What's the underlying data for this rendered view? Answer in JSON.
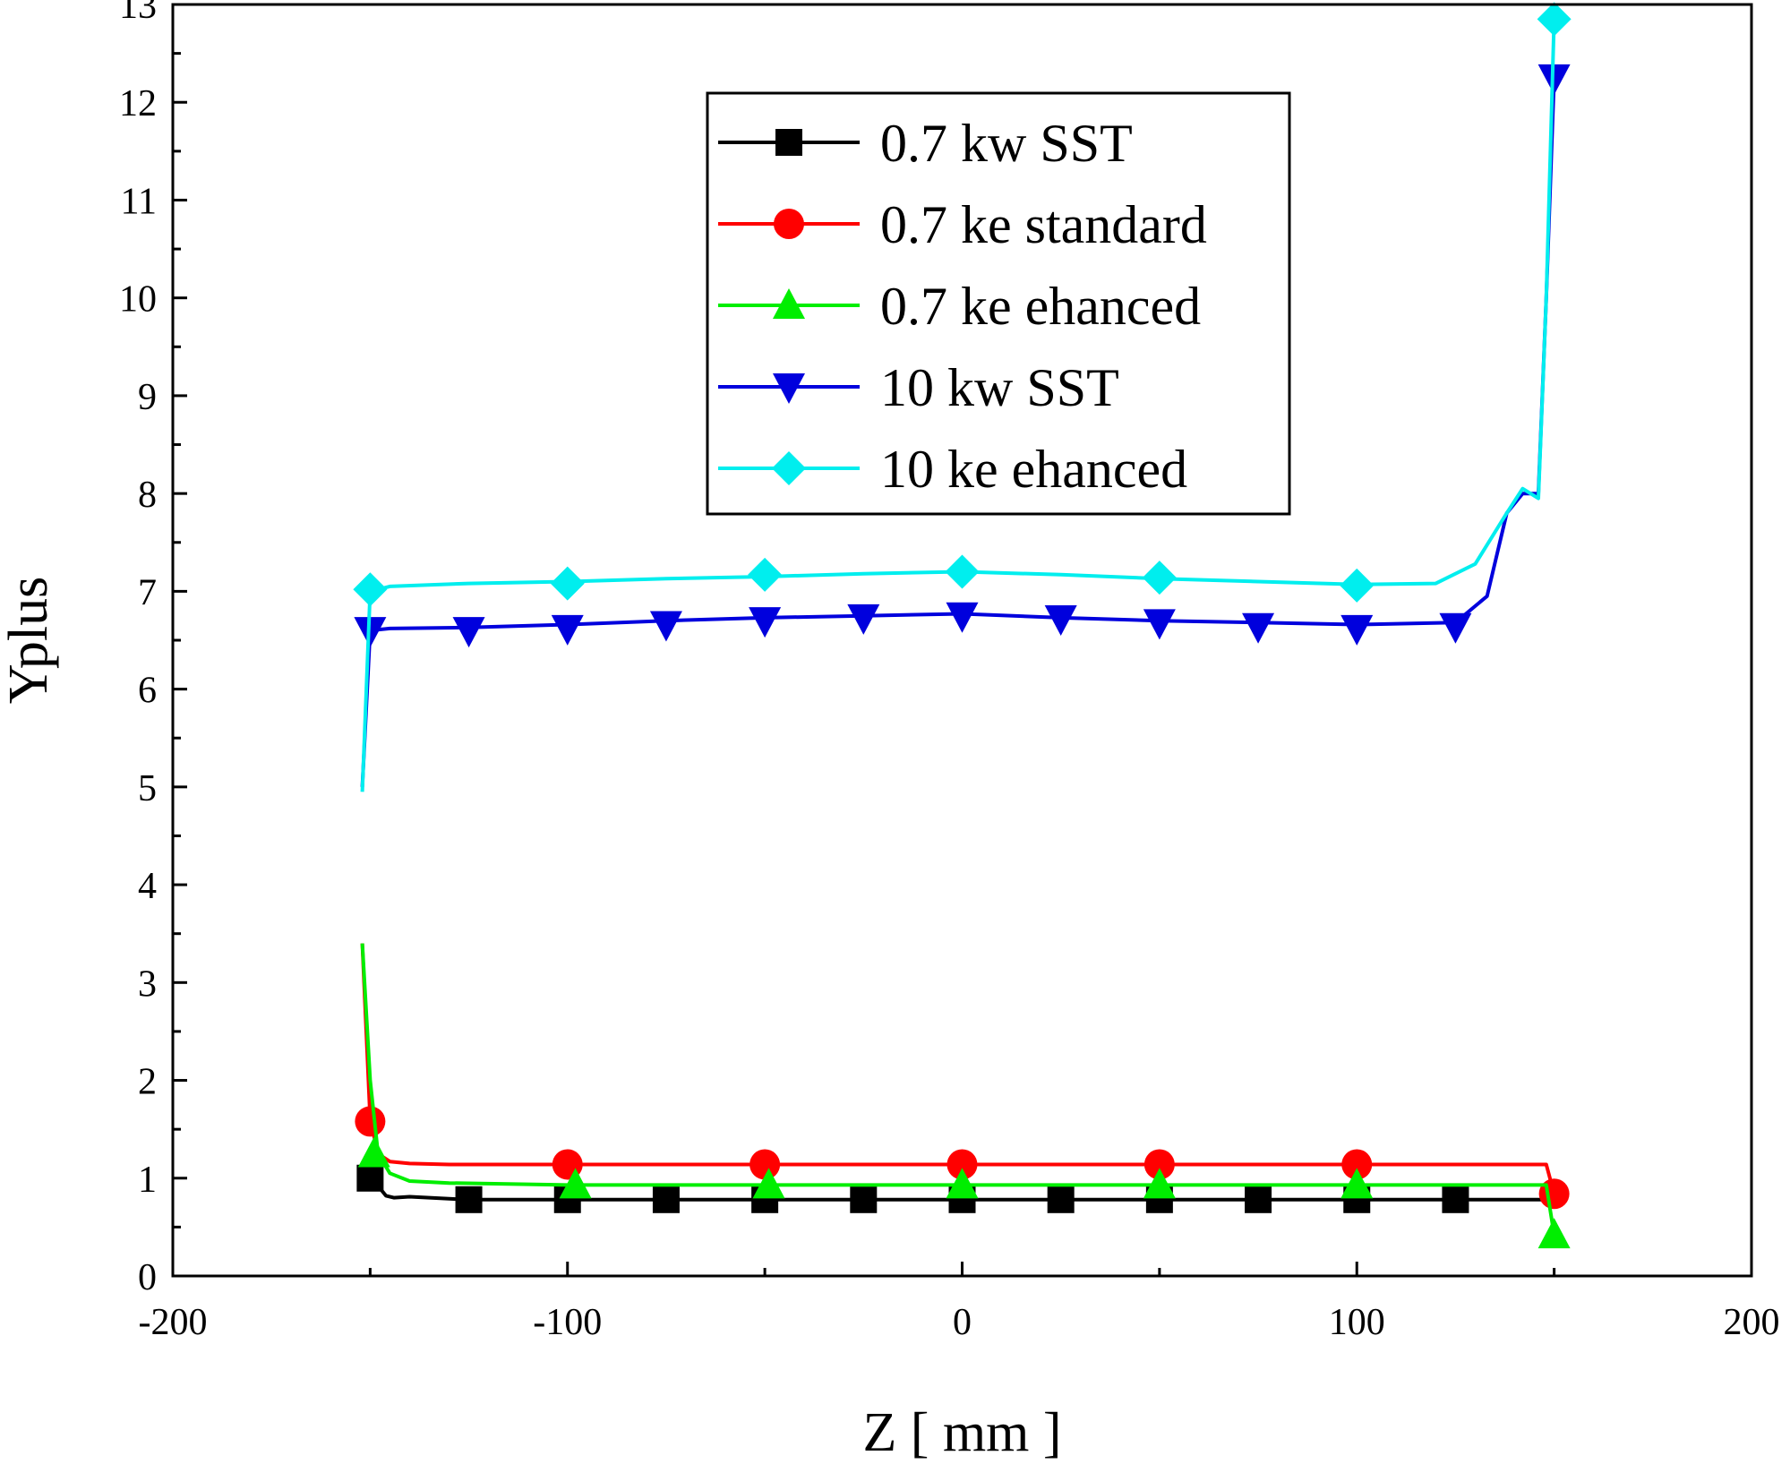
{
  "chart_data": {
    "type": "line",
    "xlabel": "Z [ mm ]",
    "ylabel": "Yplus",
    "xlim": [
      -200,
      200
    ],
    "ylim": [
      0,
      13
    ],
    "xticks": [
      -200,
      -100,
      0,
      100,
      200
    ],
    "yticks": [
      0,
      1,
      2,
      3,
      4,
      5,
      6,
      7,
      8,
      9,
      10,
      11,
      12,
      13
    ],
    "grid": false,
    "legend_position": "top-center",
    "series": [
      {
        "name": "0.7 kw SST",
        "color": "#000000",
        "marker": "square",
        "x": [
          -150,
          -148,
          -146,
          -144,
          -140,
          -135,
          -130,
          -125,
          -100,
          -75,
          -50,
          -25,
          0,
          25,
          50,
          75,
          100,
          125,
          148
        ],
        "y": [
          1.0,
          0.92,
          0.82,
          0.8,
          0.81,
          0.8,
          0.79,
          0.78,
          0.78,
          0.78,
          0.78,
          0.78,
          0.78,
          0.78,
          0.78,
          0.78,
          0.78,
          0.78,
          0.78
        ],
        "marker_x": [
          -150,
          -125,
          -100,
          -75,
          -50,
          -25,
          0,
          25,
          50,
          75,
          100,
          125
        ],
        "marker_y": [
          1.0,
          0.78,
          0.78,
          0.78,
          0.78,
          0.78,
          0.78,
          0.78,
          0.78,
          0.78,
          0.78,
          0.78
        ]
      },
      {
        "name": "0.7 ke standard",
        "color": "#ff0000",
        "marker": "circle",
        "x": [
          -152,
          -150,
          -148,
          -145,
          -140,
          -130,
          -100,
          -50,
          0,
          50,
          100,
          148,
          150
        ],
        "y": [
          3.4,
          1.6,
          1.25,
          1.17,
          1.15,
          1.14,
          1.14,
          1.14,
          1.14,
          1.14,
          1.14,
          1.14,
          0.84
        ],
        "marker_x": [
          -150,
          -100,
          -50,
          0,
          50,
          100,
          150
        ],
        "marker_y": [
          1.58,
          1.14,
          1.14,
          1.14,
          1.14,
          1.14,
          0.84
        ]
      },
      {
        "name": "0.7 ke ehanced",
        "color": "#00ee00",
        "marker": "triangle-up",
        "x": [
          -152,
          -150,
          -148,
          -145,
          -140,
          -130,
          -100,
          -50,
          0,
          50,
          100,
          148,
          150
        ],
        "y": [
          3.4,
          2.0,
          1.25,
          1.05,
          0.97,
          0.95,
          0.93,
          0.93,
          0.93,
          0.93,
          0.93,
          0.93,
          0.42
        ],
        "marker_x": [
          -149,
          -98,
          -49,
          0,
          50,
          100,
          150
        ],
        "marker_y": [
          1.25,
          0.93,
          0.93,
          0.93,
          0.93,
          0.93,
          0.42
        ]
      },
      {
        "name": "10 kw SST",
        "color": "#0000dd",
        "marker": "triangle-down",
        "x": [
          -152,
          -150,
          -145,
          -125,
          -100,
          -75,
          -50,
          -25,
          0,
          25,
          50,
          75,
          100,
          125,
          133,
          138,
          142,
          144,
          146,
          148,
          150
        ],
        "y": [
          5.0,
          6.6,
          6.62,
          6.63,
          6.66,
          6.7,
          6.73,
          6.75,
          6.77,
          6.73,
          6.7,
          6.68,
          6.66,
          6.68,
          6.95,
          7.8,
          8.0,
          8.0,
          8.0,
          10.0,
          12.25
        ],
        "marker_x": [
          -150,
          -125,
          -100,
          -75,
          -50,
          -25,
          0,
          25,
          50,
          75,
          100,
          125,
          150
        ],
        "marker_y": [
          6.6,
          6.6,
          6.62,
          6.66,
          6.7,
          6.73,
          6.75,
          6.72,
          6.68,
          6.64,
          6.62,
          6.64,
          12.25
        ]
      },
      {
        "name": "10 ke ehanced",
        "color": "#00eeee",
        "marker": "diamond",
        "x": [
          -152,
          -150,
          -145,
          -125,
          -100,
          -75,
          -50,
          -25,
          0,
          25,
          50,
          75,
          100,
          120,
          130,
          138,
          142,
          146,
          148,
          150
        ],
        "y": [
          4.95,
          7.0,
          7.05,
          7.08,
          7.1,
          7.13,
          7.15,
          7.18,
          7.2,
          7.17,
          7.13,
          7.1,
          7.07,
          7.08,
          7.28,
          7.8,
          8.05,
          7.95,
          10.0,
          12.85
        ],
        "marker_x": [
          -150,
          -100,
          -50,
          0,
          50,
          100,
          150
        ],
        "marker_y": [
          7.02,
          7.08,
          7.17,
          7.2,
          7.14,
          7.06,
          12.85
        ]
      }
    ]
  }
}
